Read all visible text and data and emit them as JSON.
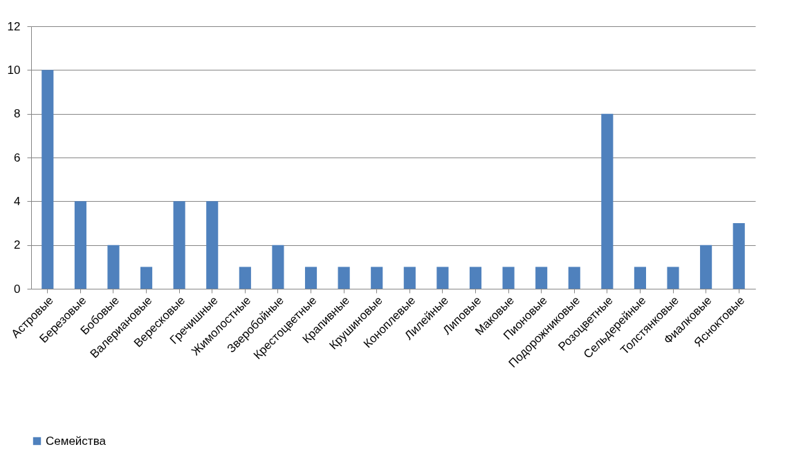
{
  "chart_data": {
    "type": "bar",
    "categories": [
      "Астровые",
      "Березовые",
      "Бобовые",
      "Валериановые",
      "Вересковые",
      "Гречишные",
      "Жимолостные",
      "Зверобойные",
      "Крестоцветные",
      "Крапивные",
      "Крушиновые",
      "Коноплевые",
      "Лилейные",
      "Липовые",
      "Маковые",
      "Пионовые",
      "Подорожниковые",
      "Розоцветные",
      "Сельдерейные",
      "Толстянковые",
      "Фиалковые",
      "Ясноктовые"
    ],
    "series": [
      {
        "name": "Семейства",
        "color": "#4f81bd",
        "values": [
          10,
          4,
          2,
          1,
          4,
          4,
          1,
          2,
          1,
          1,
          1,
          1,
          1,
          1,
          1,
          1,
          1,
          8,
          1,
          1,
          2,
          3
        ]
      }
    ],
    "ylim": [
      0,
      12
    ],
    "yticks": [
      0,
      2,
      4,
      6,
      8,
      10,
      12
    ],
    "grid": "y",
    "legend": "bottom"
  }
}
